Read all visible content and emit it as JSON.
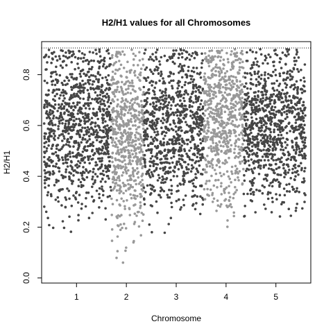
{
  "chart_data": {
    "type": "scatter",
    "title": "H2/H1 values for all Chromosomes",
    "xlabel": "Chromosome",
    "ylabel": "H2/H1",
    "xlim": [
      0.3,
      5.7
    ],
    "ylim": [
      -0.02,
      0.93
    ],
    "xticks": [
      1,
      2,
      3,
      4,
      5
    ],
    "yticks": [
      0.0,
      0.2,
      0.4,
      0.6,
      0.8
    ],
    "reference_line": {
      "y": 0.905,
      "style": "dotted"
    },
    "grid": false,
    "legend": "none",
    "series": [
      {
        "color": "#454545",
        "x_range": [
          0.35,
          1.7
        ],
        "center": 0.6,
        "spread": 0.16,
        "count": 1000
      },
      {
        "color": "#999999",
        "x_range": [
          1.7,
          2.35
        ],
        "center": 0.55,
        "spread": 0.17,
        "count": 600
      },
      {
        "color": "#454545",
        "x_range": [
          2.35,
          3.55
        ],
        "center": 0.6,
        "spread": 0.16,
        "count": 900
      },
      {
        "color": "#999999",
        "x_range": [
          3.55,
          4.35
        ],
        "center": 0.63,
        "spread": 0.16,
        "count": 650
      },
      {
        "color": "#454545",
        "x_range": [
          4.35,
          5.6
        ],
        "center": 0.6,
        "spread": 0.15,
        "count": 950
      }
    ]
  }
}
